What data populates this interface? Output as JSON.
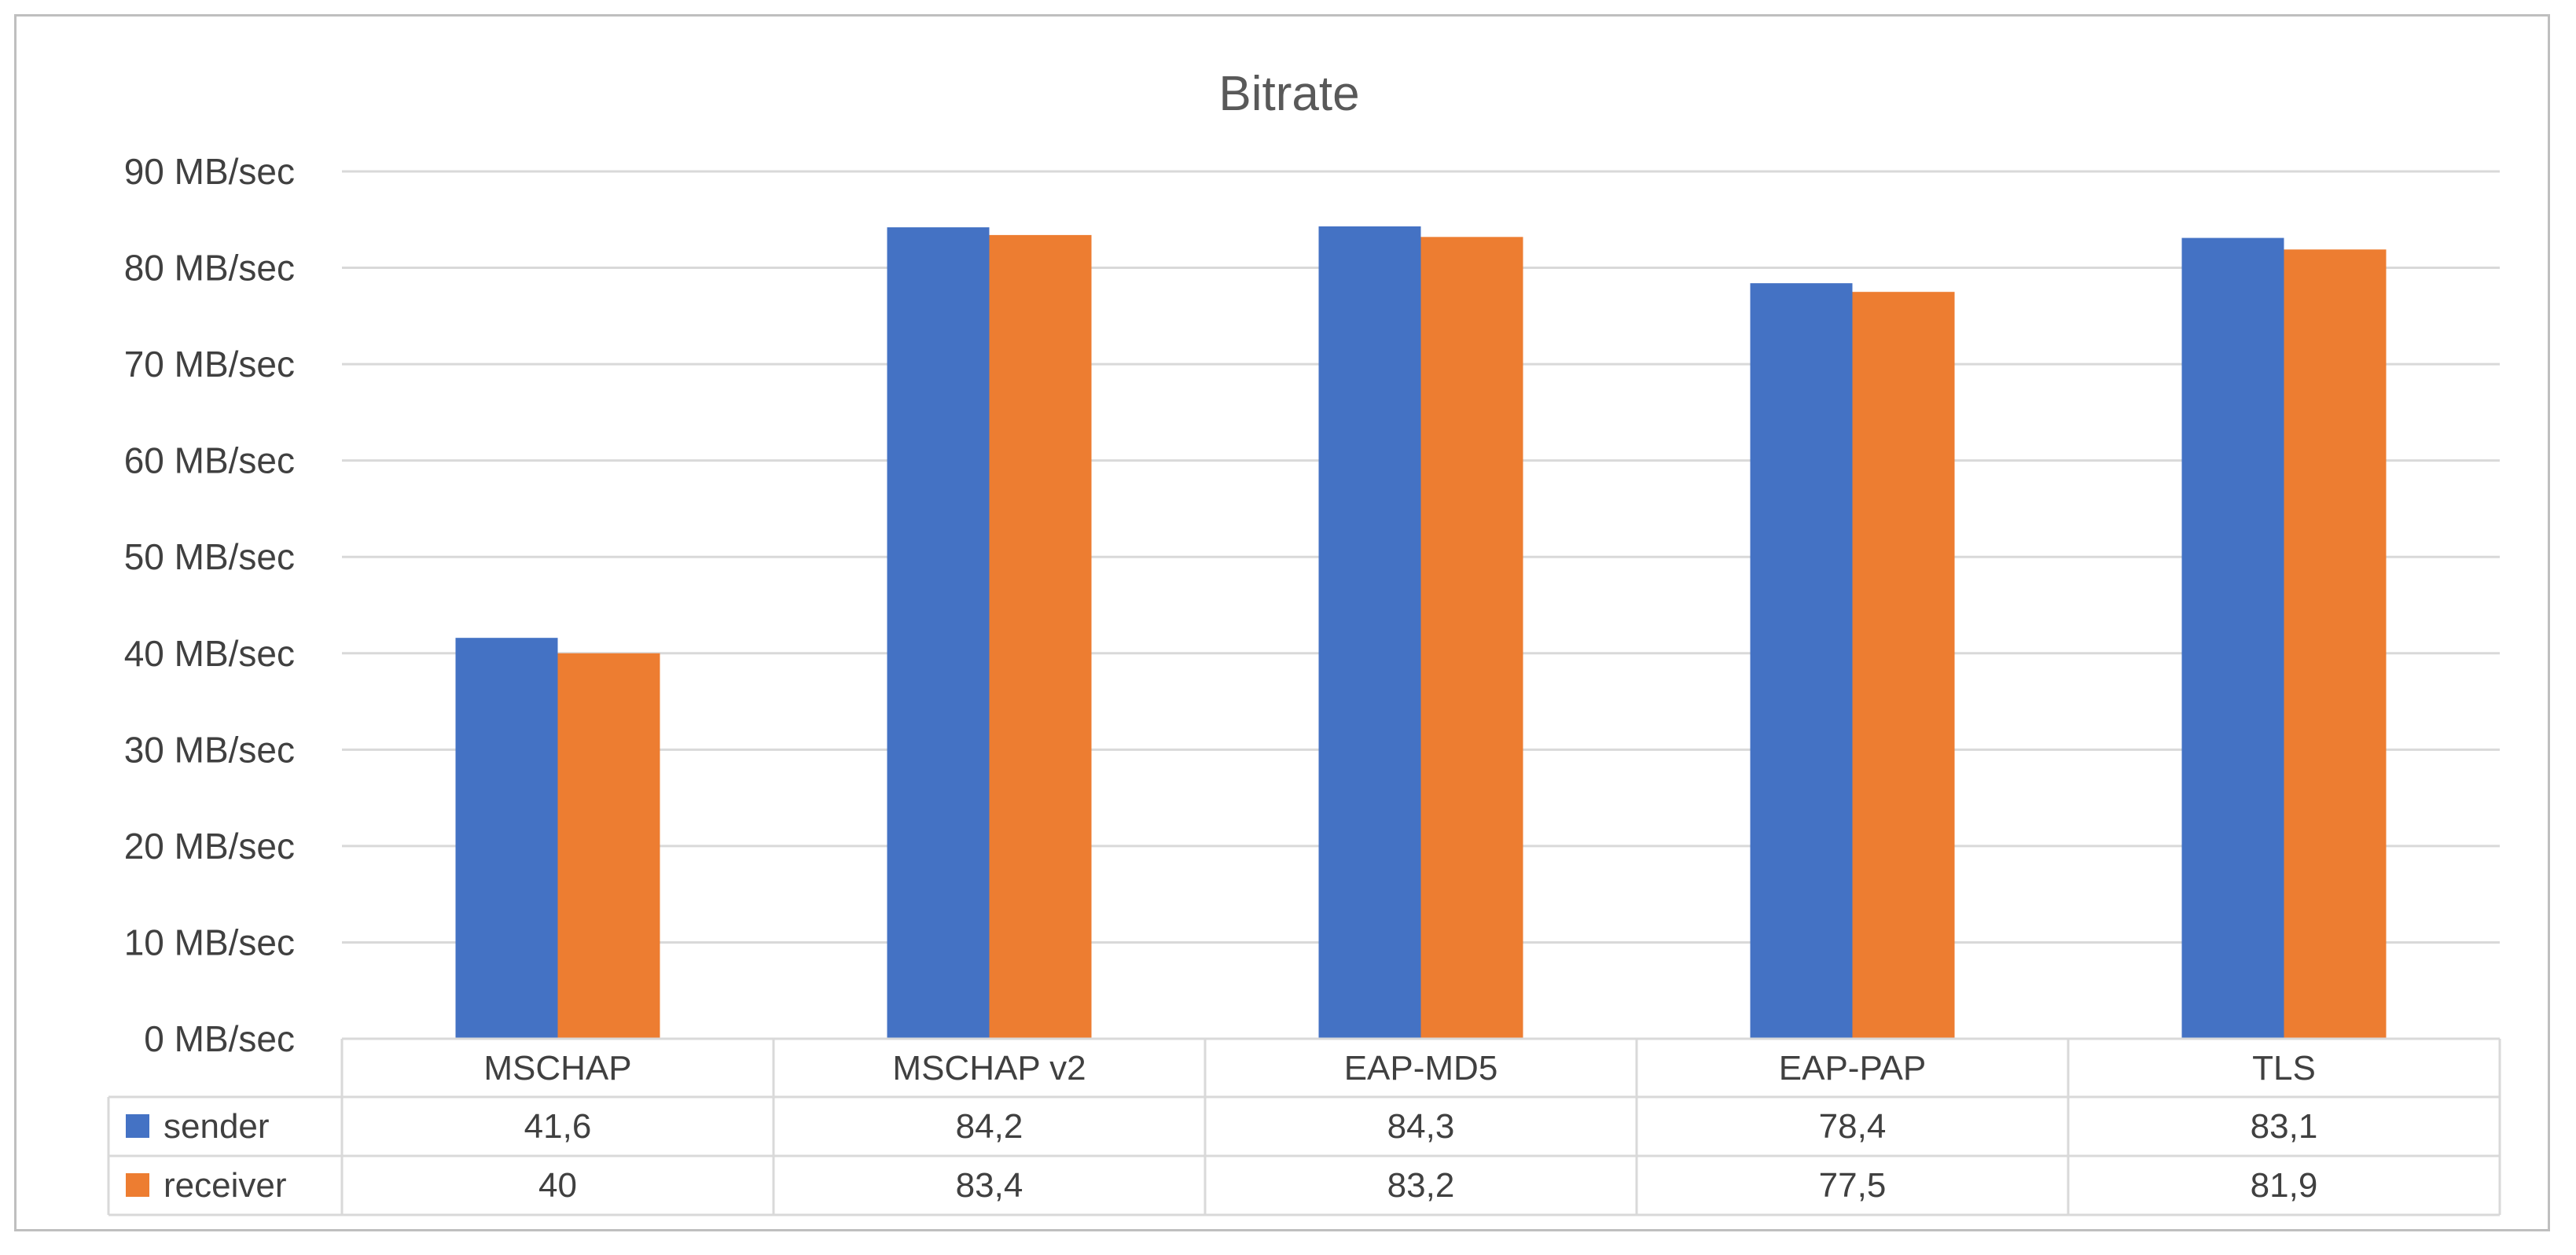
{
  "colors": {
    "sender": "#4472c4",
    "receiver": "#ed7d31",
    "grid": "#d9d9d9",
    "text": "#404040"
  },
  "chart_data": {
    "type": "bar",
    "title": "Bitrate",
    "xlabel": "",
    "ylabel": "",
    "ylim": [
      0,
      90
    ],
    "yticks": [
      "0 MB/sec",
      "10 MB/sec",
      "20 MB/sec",
      "30 MB/sec",
      "40 MB/sec",
      "50 MB/sec",
      "60 MB/sec",
      "70 MB/sec",
      "80 MB/sec",
      "90 MB/sec"
    ],
    "categories": [
      "MSCHAP",
      "MSCHAP v2",
      "EAP-MD5",
      "EAP-PAP",
      "TLS"
    ],
    "grid": true,
    "legend": "data-table",
    "series": [
      {
        "name": "sender",
        "values": [
          41.6,
          84.2,
          84.3,
          78.4,
          83.1
        ],
        "labels": [
          "41,6",
          "84,2",
          "84,3",
          "78,4",
          "83,1"
        ]
      },
      {
        "name": "receiver",
        "values": [
          40,
          83.4,
          83.2,
          77.5,
          81.9
        ],
        "labels": [
          "40",
          "83,4",
          "83,2",
          "77,5",
          "81,9"
        ]
      }
    ]
  }
}
